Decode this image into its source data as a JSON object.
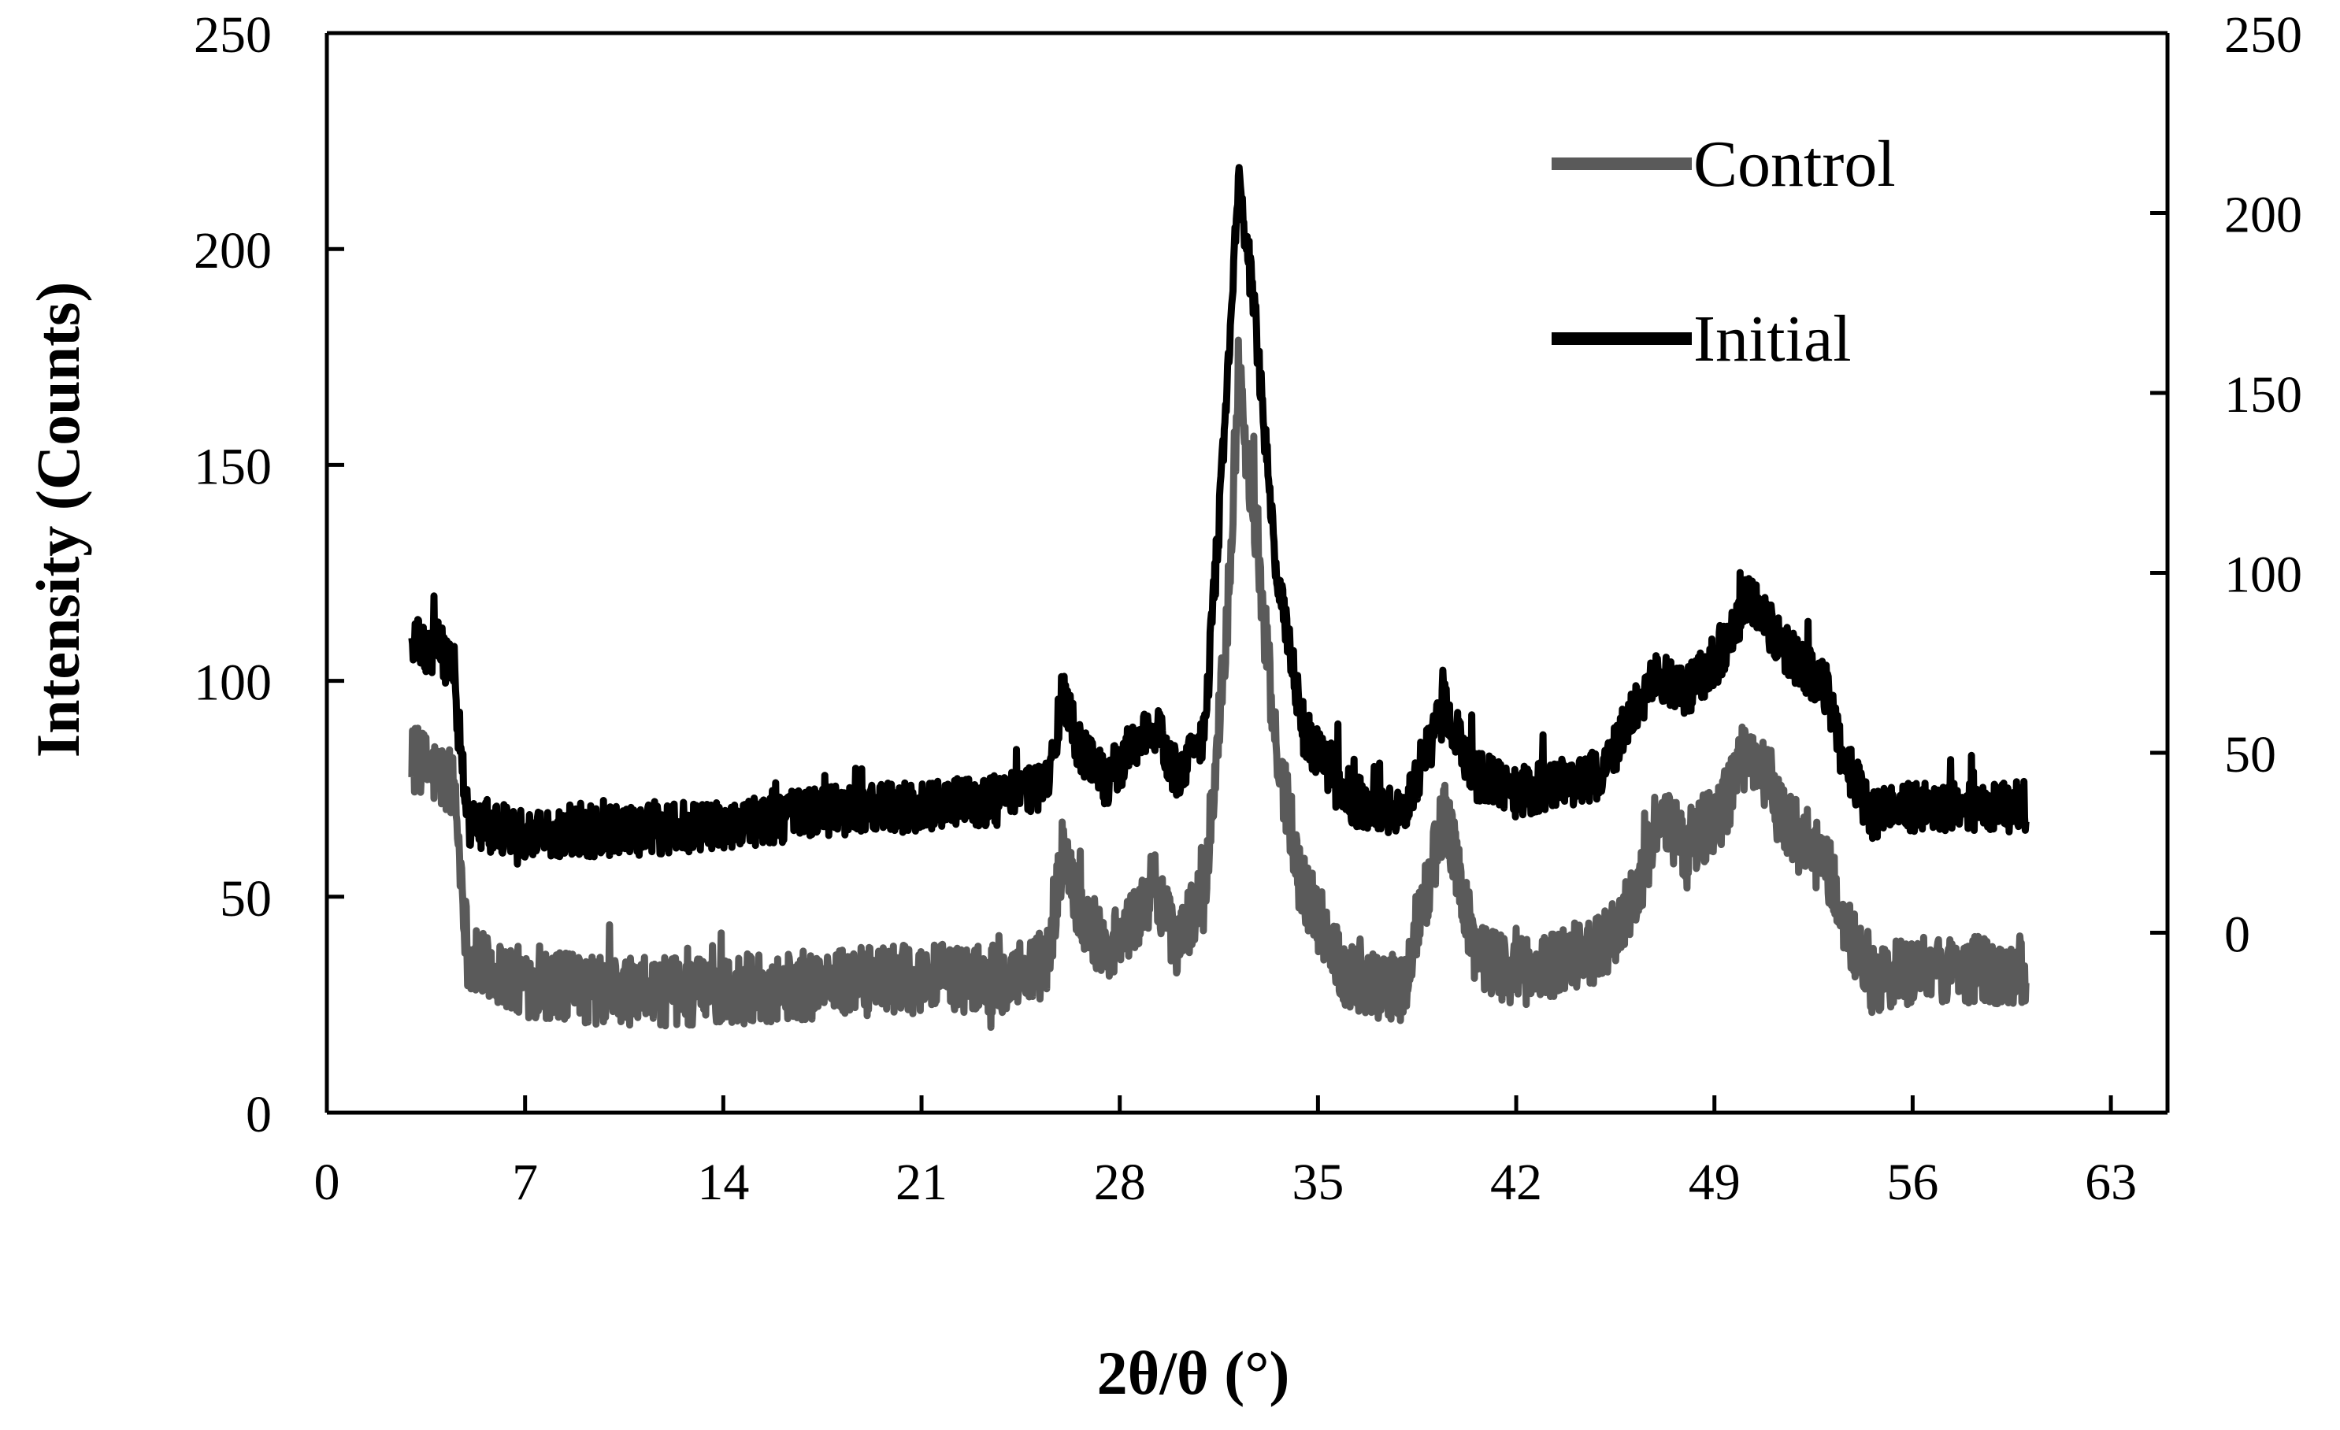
{
  "chart_data": {
    "type": "line",
    "xlabel": "2θ/θ (°)",
    "ylabel": "Intensity (Counts)",
    "x_ticks": [
      0,
      7,
      14,
      21,
      28,
      35,
      42,
      49,
      56,
      63
    ],
    "x_tick_labels": [
      "0",
      "7",
      "14",
      "21",
      "28",
      "35",
      "42",
      "49",
      "56",
      "63"
    ],
    "xlim": [
      0,
      65
    ],
    "y_left_ticks": [
      0,
      50,
      100,
      150,
      200,
      250
    ],
    "y_left_tick_labels": [
      "0",
      "50",
      "100",
      "150",
      "200",
      "250"
    ],
    "ylim_left": [
      0,
      250
    ],
    "y_right_ticks": [
      0,
      50,
      100,
      150,
      200,
      250
    ],
    "y_right_tick_labels": [
      "0",
      "50",
      "100",
      "150",
      "200",
      "250"
    ],
    "ylim_right": [
      -50,
      250
    ],
    "grid": false,
    "legend_position": "top-right",
    "colors": {
      "Control": "#5a5a5a",
      "Initial": "#000000"
    },
    "series": [
      {
        "name": "Control",
        "axis": "left",
        "noise_amplitude": 8,
        "x": [
          3,
          3.5,
          4,
          4.5,
          5,
          7,
          10,
          14,
          18,
          21,
          24,
          25.5,
          26,
          26.5,
          27.5,
          28.5,
          29.2,
          30,
          31,
          31.8,
          32.2,
          32.8,
          33.5,
          34.5,
          36,
          38,
          39.5,
          40.5,
          42,
          45,
          46.2,
          47,
          48,
          49.3,
          50.2,
          51.5,
          53,
          53.5,
          54.5,
          56,
          58,
          60
        ],
        "y": [
          82,
          80,
          78,
          75,
          35,
          30,
          28,
          28,
          30,
          31,
          31,
          35,
          62,
          48,
          38,
          44,
          53,
          40,
          50,
          115,
          170,
          135,
          85,
          52,
          32,
          28,
          70,
          38,
          32,
          38,
          50,
          68,
          62,
          70,
          85,
          68,
          57,
          45,
          30,
          33,
          33,
          33
        ]
      },
      {
        "name": "Initial",
        "axis": "right",
        "noise_amplitude": 7,
        "x": [
          3,
          3.5,
          4,
          4.5,
          5,
          7,
          10,
          14,
          18,
          21,
          24,
          25.5,
          26,
          26.5,
          27.5,
          28.5,
          29.2,
          30,
          31,
          31.8,
          32.2,
          32.8,
          33.5,
          34.5,
          36,
          38,
          39.5,
          40.5,
          42,
          45,
          46.2,
          47,
          48,
          49.3,
          50.2,
          51.5,
          53,
          53.5,
          54.5,
          56,
          58,
          60
        ],
        "y": [
          82,
          78,
          80,
          70,
          30,
          28,
          28,
          30,
          34,
          35,
          37,
          42,
          68,
          52,
          42,
          52,
          58,
          44,
          55,
          150,
          210,
          170,
          100,
          56,
          37,
          34,
          63,
          44,
          39,
          44,
          62,
          72,
          67,
          78,
          93,
          79,
          67,
          50,
          33,
          35,
          35,
          35
        ]
      }
    ]
  }
}
